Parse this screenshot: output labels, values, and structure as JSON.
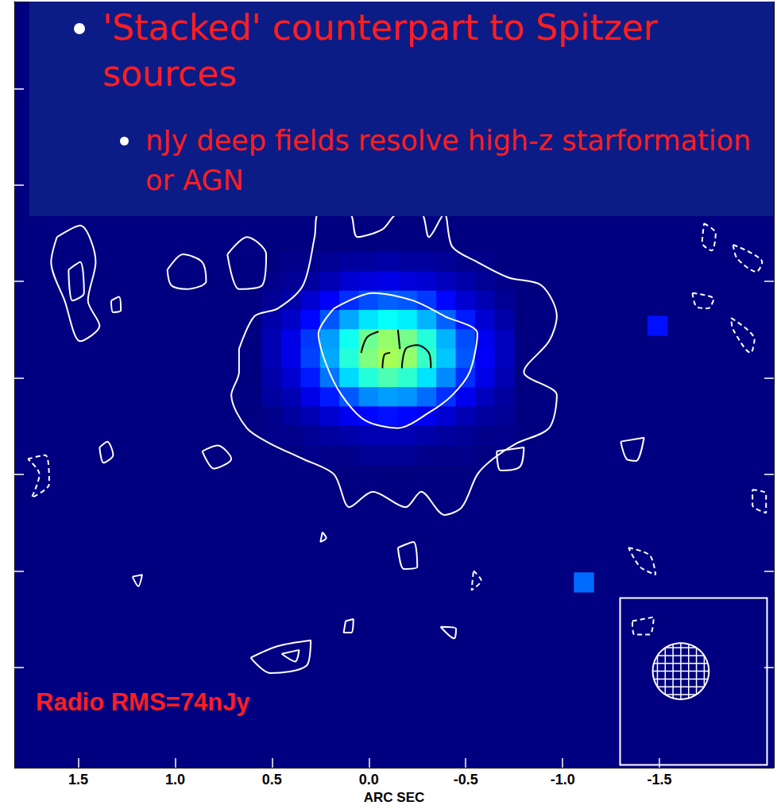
{
  "chart_data": {
    "type": "image",
    "title": "'Stacked' counterpart to Spitzer sources",
    "subtitle": "nJy deep fields resolve high-z starformation or AGN",
    "annotations": [
      "Radio RMS=74nJy"
    ],
    "x_label": "ARC SEC",
    "xlim": [
      1.83,
      -2.09
    ],
    "xticks": [
      1.5,
      {
        "value": 1,
        "label": "1.0"
      },
      0.5,
      {
        "value": 0,
        "label": "0.0"
      },
      -0.5,
      {
        "value": -1,
        "label": "-1.0"
      },
      -1.5
    ],
    "ylim": [
      -2.02,
      1.95
    ],
    "yticks": [
      -1.5,
      -1,
      -0.5,
      0,
      0.5,
      1,
      1.5
    ],
    "tick_labels": "x",
    "grid": false,
    "image": {
      "zlim": [
        0,
        1
      ],
      "x": [
        0.5,
        0.4,
        0.3,
        0.2,
        0.1,
        0.0,
        -0.1,
        -0.2,
        -0.3,
        -0.4,
        -0.5,
        -0.6,
        -0.7
      ],
      "y": [
        0.6,
        0.5,
        0.4,
        0.3,
        0.2,
        0.1,
        0.0,
        -0.1,
        -0.2,
        -0.3,
        -0.4
      ],
      "z": [
        [
          0.0,
          0.01,
          0.01,
          0.02,
          0.03,
          0.03,
          0.04,
          0.03,
          0.03,
          0.02,
          0.01,
          0.01,
          0.0
        ],
        [
          0.01,
          0.02,
          0.03,
          0.05,
          0.08,
          0.09,
          0.1,
          0.09,
          0.08,
          0.06,
          0.04,
          0.02,
          0.01
        ],
        [
          0.02,
          0.04,
          0.08,
          0.12,
          0.17,
          0.2,
          0.22,
          0.21,
          0.18,
          0.13,
          0.08,
          0.05,
          0.02
        ],
        [
          0.04,
          0.07,
          0.13,
          0.21,
          0.29,
          0.35,
          0.38,
          0.36,
          0.3,
          0.22,
          0.15,
          0.08,
          0.04
        ],
        [
          0.05,
          0.1,
          0.18,
          0.28,
          0.39,
          0.48,
          0.52,
          0.49,
          0.41,
          0.3,
          0.2,
          0.11,
          0.06
        ],
        [
          0.05,
          0.1,
          0.19,
          0.29,
          0.41,
          0.5,
          0.54,
          0.52,
          0.43,
          0.32,
          0.21,
          0.12,
          0.06
        ],
        [
          0.04,
          0.08,
          0.15,
          0.24,
          0.34,
          0.41,
          0.45,
          0.42,
          0.35,
          0.26,
          0.17,
          0.1,
          0.05
        ],
        [
          0.03,
          0.05,
          0.1,
          0.15,
          0.21,
          0.26,
          0.28,
          0.27,
          0.23,
          0.17,
          0.11,
          0.06,
          0.03
        ],
        [
          0.01,
          0.03,
          0.05,
          0.08,
          0.11,
          0.13,
          0.14,
          0.13,
          0.11,
          0.08,
          0.05,
          0.03,
          0.02
        ],
        [
          0.01,
          0.01,
          0.02,
          0.03,
          0.04,
          0.05,
          0.05,
          0.05,
          0.04,
          0.03,
          0.02,
          0.01,
          0.01
        ],
        [
          0.0,
          0.0,
          0.01,
          0.01,
          0.01,
          0.02,
          0.02,
          0.02,
          0.01,
          0.01,
          0.01,
          0.0,
          0.0
        ]
      ],
      "spots": [
        [
          -1.11,
          -1.06,
          0.23
        ],
        [
          -1.49,
          0.27,
          0.14
        ]
      ]
    },
    "contours": [
      {
        "color": "#ffffff",
        "line_style": "solid",
        "paths": [
          [
            [
              0.67,
              0.15
            ],
            [
              0.59,
              0.32
            ],
            [
              0.47,
              0.36
            ],
            [
              0.34,
              0.48
            ],
            [
              0.28,
              0.73
            ],
            [
              0.26,
              0.85
            ],
            [
              0.1,
              0.85
            ],
            [
              0.06,
              0.73
            ],
            [
              -0.07,
              0.77
            ],
            [
              -0.15,
              0.85
            ],
            [
              -0.27,
              0.85
            ],
            [
              -0.31,
              0.73
            ],
            [
              -0.39,
              0.85
            ],
            [
              -0.43,
              0.68
            ],
            [
              -0.56,
              0.6
            ],
            [
              -0.72,
              0.52
            ],
            [
              -0.89,
              0.48
            ],
            [
              -0.97,
              0.32
            ],
            [
              -0.93,
              0.19
            ],
            [
              -0.8,
              0.03
            ],
            [
              -0.97,
              -0.09
            ],
            [
              -0.93,
              -0.26
            ],
            [
              -0.76,
              -0.34
            ],
            [
              -0.64,
              -0.42
            ],
            [
              -0.56,
              -0.5
            ],
            [
              -0.48,
              -0.67
            ],
            [
              -0.39,
              -0.71
            ],
            [
              -0.27,
              -0.59
            ],
            [
              -0.19,
              -0.67
            ],
            [
              -0.02,
              -0.59
            ],
            [
              0.1,
              -0.67
            ],
            [
              0.18,
              -0.5
            ],
            [
              0.34,
              -0.42
            ],
            [
              0.51,
              -0.34
            ],
            [
              0.63,
              -0.26
            ],
            [
              0.71,
              -0.09
            ],
            [
              0.67,
              0.03
            ],
            [
              0.67,
              0.15
            ]
          ],
          [
            [
              0.18,
              0.36
            ],
            [
              -0.02,
              0.44
            ],
            [
              -0.23,
              0.4
            ],
            [
              -0.39,
              0.32
            ],
            [
              -0.56,
              0.23
            ],
            [
              -0.52,
              0.03
            ],
            [
              -0.43,
              -0.09
            ],
            [
              -0.31,
              -0.18
            ],
            [
              -0.15,
              -0.26
            ],
            [
              0.02,
              -0.22
            ],
            [
              0.14,
              -0.09
            ],
            [
              0.22,
              0.07
            ],
            [
              0.26,
              0.23
            ],
            [
              0.18,
              0.36
            ]
          ],
          [
            [
              1.61,
              0.73
            ],
            [
              1.49,
              0.79
            ],
            [
              1.41,
              0.6
            ],
            [
              1.45,
              0.4
            ],
            [
              1.39,
              0.27
            ],
            [
              1.49,
              0.19
            ],
            [
              1.57,
              0.4
            ],
            [
              1.64,
              0.6
            ],
            [
              1.61,
              0.73
            ]
          ],
          [
            [
              1.55,
              0.56
            ],
            [
              1.49,
              0.6
            ],
            [
              1.47,
              0.44
            ],
            [
              1.53,
              0.4
            ],
            [
              1.55,
              0.56
            ]
          ],
          [
            [
              1.33,
              0.4
            ],
            [
              1.29,
              0.42
            ],
            [
              1.28,
              0.35
            ],
            [
              1.32,
              0.34
            ],
            [
              1.33,
              0.4
            ]
          ],
          [
            [
              1.04,
              0.56
            ],
            [
              0.96,
              0.64
            ],
            [
              0.86,
              0.6
            ],
            [
              0.84,
              0.5
            ],
            [
              0.94,
              0.46
            ],
            [
              1.02,
              0.48
            ],
            [
              1.04,
              0.56
            ]
          ],
          [
            [
              0.73,
              0.64
            ],
            [
              0.63,
              0.73
            ],
            [
              0.53,
              0.64
            ],
            [
              0.55,
              0.48
            ],
            [
              0.67,
              0.46
            ],
            [
              0.73,
              0.64
            ]
          ],
          [
            [
              1.39,
              -0.36
            ],
            [
              1.35,
              -0.33
            ],
            [
              1.32,
              -0.4
            ],
            [
              1.37,
              -0.44
            ],
            [
              1.39,
              -0.36
            ]
          ],
          [
            [
              0.86,
              -0.38
            ],
            [
              0.78,
              -0.35
            ],
            [
              0.71,
              -0.42
            ],
            [
              0.8,
              -0.47
            ],
            [
              0.86,
              -0.38
            ]
          ],
          [
            [
              0.61,
              -1.45
            ],
            [
              0.47,
              -1.39
            ],
            [
              0.3,
              -1.36
            ],
            [
              0.32,
              -1.49
            ],
            [
              0.51,
              -1.53
            ],
            [
              0.61,
              -1.45
            ]
          ],
          [
            [
              0.45,
              -1.43
            ],
            [
              0.36,
              -1.41
            ],
            [
              0.38,
              -1.47
            ],
            [
              0.45,
              -1.43
            ]
          ],
          [
            [
              -0.15,
              -0.88
            ],
            [
              -0.23,
              -0.85
            ],
            [
              -0.25,
              -0.98
            ],
            [
              -0.18,
              -0.99
            ],
            [
              -0.15,
              -0.88
            ]
          ],
          [
            [
              -0.66,
              -0.38
            ],
            [
              -0.8,
              -0.36
            ],
            [
              -0.78,
              -0.46
            ],
            [
              -0.68,
              -0.48
            ],
            [
              -0.66,
              -0.38
            ]
          ],
          [
            [
              -1.3,
              -0.33
            ],
            [
              -1.42,
              -0.31
            ],
            [
              -1.38,
              -0.43
            ],
            [
              -1.33,
              -0.42
            ],
            [
              -1.3,
              -0.33
            ]
          ],
          [
            [
              0.12,
              -1.26
            ],
            [
              0.08,
              -1.25
            ],
            [
              0.09,
              -1.32
            ],
            [
              0.13,
              -1.32
            ],
            [
              0.12,
              -1.26
            ]
          ],
          [
            [
              -0.37,
              -1.29
            ],
            [
              -0.45,
              -1.3
            ],
            [
              -0.44,
              -1.35
            ],
            [
              -0.37,
              -1.29
            ]
          ],
          [
            [
              1.22,
              -1.03
            ],
            [
              1.17,
              -1.02
            ],
            [
              1.19,
              -1.08
            ],
            [
              1.22,
              -1.03
            ]
          ],
          [
            [
              0.24,
              -0.8
            ],
            [
              0.22,
              -0.83
            ],
            [
              0.25,
              -0.85
            ],
            [
              0.24,
              -0.8
            ]
          ]
        ]
      },
      {
        "color": "#000000",
        "line_style": "solid",
        "paths": [
          [
            [
              0.04,
              0.13
            ],
            [
              0.01,
              0.21
            ],
            [
              -0.05,
              0.24
            ]
          ],
          [
            [
              -0.07,
              0.05
            ],
            [
              -0.08,
              0.12
            ],
            [
              -0.11,
              0.13
            ]
          ],
          [
            [
              -0.17,
              0.05
            ],
            [
              -0.19,
              0.15
            ],
            [
              -0.25,
              0.17
            ],
            [
              -0.31,
              0.13
            ],
            [
              -0.32,
              0.05
            ]
          ],
          [
            [
              -0.15,
              0.25
            ],
            [
              -0.16,
              0.15
            ]
          ]
        ]
      },
      {
        "color": "#ffffff",
        "line_style": "dashed",
        "paths": [
          [
            [
              -1.73,
              0.8
            ],
            [
              -1.79,
              0.75
            ],
            [
              -1.77,
              0.66
            ],
            [
              -1.72,
              0.7
            ],
            [
              -1.73,
              0.8
            ]
          ],
          [
            [
              -1.88,
              0.69
            ],
            [
              -2.03,
              0.6
            ],
            [
              -2.0,
              0.55
            ],
            [
              -1.9,
              0.62
            ],
            [
              -1.88,
              0.69
            ]
          ],
          [
            [
              -1.67,
              0.44
            ],
            [
              -1.78,
              0.41
            ],
            [
              -1.75,
              0.36
            ],
            [
              -1.69,
              0.37
            ],
            [
              -1.67,
              0.44
            ]
          ],
          [
            [
              -1.87,
              0.31
            ],
            [
              -1.99,
              0.2
            ],
            [
              -1.97,
              0.13
            ],
            [
              -1.88,
              0.25
            ],
            [
              -1.87,
              0.31
            ]
          ],
          [
            [
              1.76,
              -0.42
            ],
            [
              1.67,
              -0.4
            ],
            [
              1.65,
              -0.55
            ],
            [
              1.74,
              -0.62
            ],
            [
              1.7,
              -0.5
            ],
            [
              1.76,
              -0.42
            ]
          ],
          [
            [
              -1.34,
              -0.88
            ],
            [
              -1.45,
              -0.92
            ],
            [
              -1.48,
              -1.02
            ],
            [
              -1.4,
              -0.98
            ],
            [
              -1.34,
              -0.88
            ]
          ],
          [
            [
              -1.36,
              -1.26
            ],
            [
              -1.47,
              -1.24
            ],
            [
              -1.45,
              -1.33
            ],
            [
              -1.37,
              -1.33
            ],
            [
              -1.36,
              -1.26
            ]
          ],
          [
            [
              -0.54,
              -1.0
            ],
            [
              -0.58,
              -1.05
            ],
            [
              -0.53,
              -1.1
            ],
            [
              -0.54,
              -1.0
            ]
          ],
          [
            [
              -1.98,
              -0.58
            ],
            [
              -2.05,
              -0.6
            ],
            [
              -2.05,
              -0.7
            ],
            [
              -1.98,
              -0.66
            ],
            [
              -1.98,
              -0.58
            ]
          ]
        ]
      }
    ],
    "beam": {
      "x": -1.61,
      "y": -1.52,
      "diameter": 0.29
    }
  }
}
